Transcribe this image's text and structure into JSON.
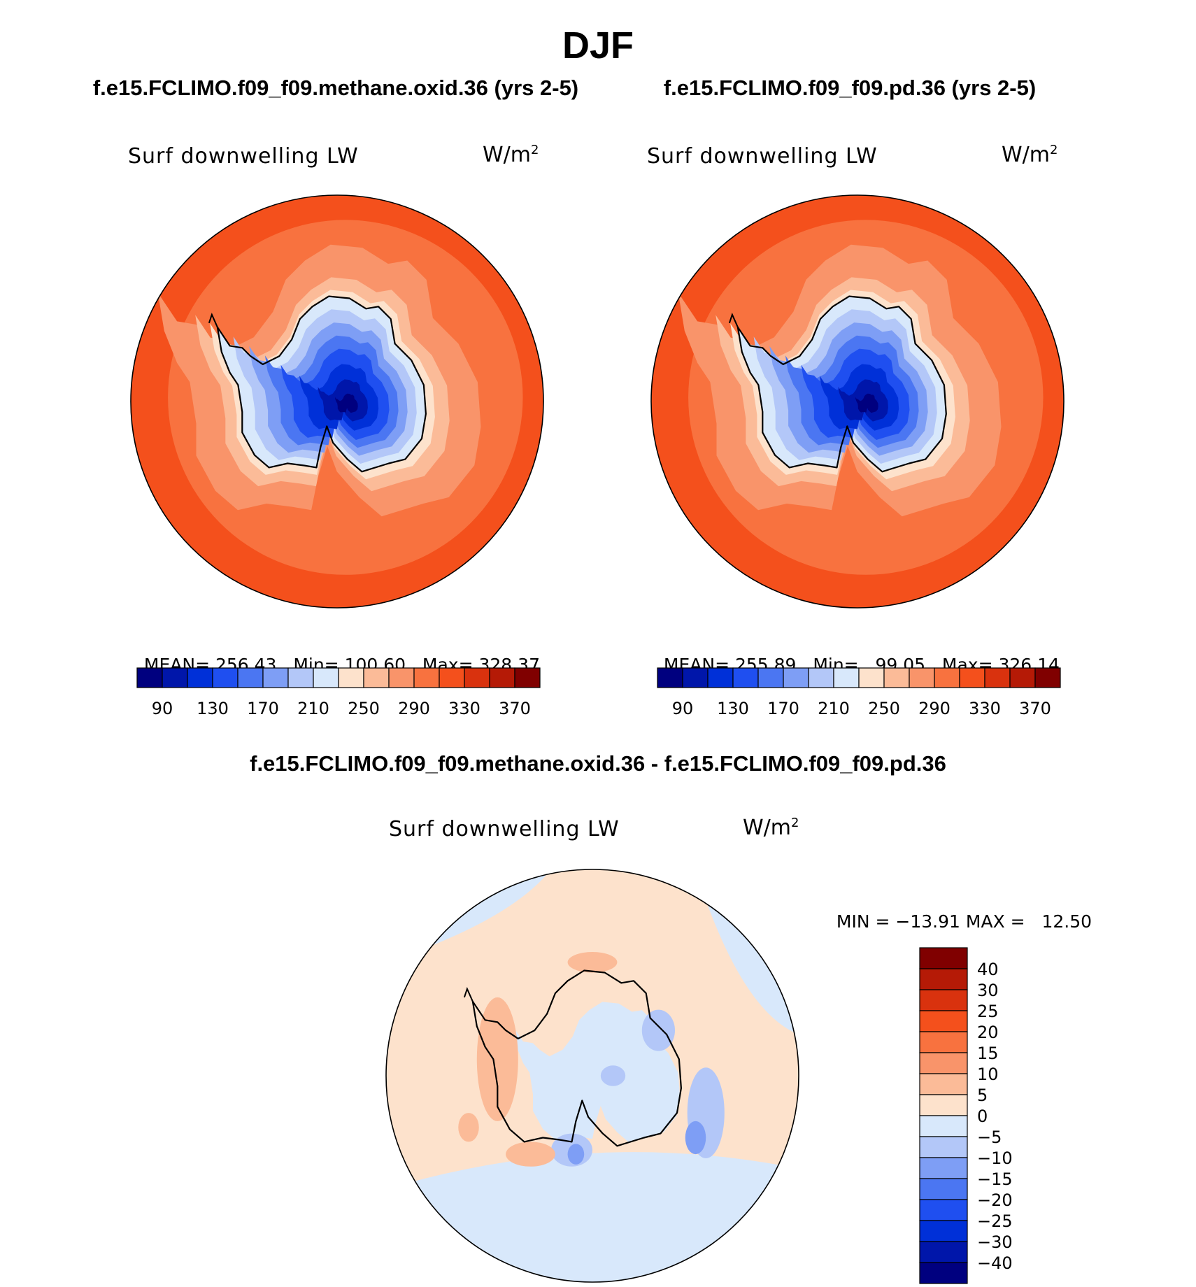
{
  "season": "DJF",
  "panels": [
    {
      "title": "f.e15.FCLIMO.f09_f09.methane.oxid.36 (yrs 2-5)",
      "variable": "Surf downwelling LW",
      "units": "W/m",
      "units_sup": "2",
      "stats": {
        "mean_label": "MEAN=",
        "mean": "256.43",
        "min_label": "Min=",
        "min": "100.60",
        "max_label": "Max=",
        "max": "328.37"
      }
    },
    {
      "title": "f.e15.FCLIMO.f09_f09.pd.36 (yrs 2-5)",
      "variable": "Surf downwelling LW",
      "units": "W/m",
      "units_sup": "2",
      "stats": {
        "mean_label": "MEAN=",
        "mean": "255.89",
        "min_label": "Min=",
        "min": "99.05",
        "max_label": "Max=",
        "max": "326.14"
      }
    }
  ],
  "abs_colorbar": {
    "ticks": [
      "90",
      "130",
      "170",
      "210",
      "250",
      "290",
      "330",
      "370"
    ],
    "colors": [
      "#00007f",
      "#0016aa",
      "#0030d8",
      "#1f4ff0",
      "#4b76f2",
      "#7e9ef5",
      "#b3c7f8",
      "#d8e8fb",
      "#fde2cc",
      "#fbbb98",
      "#f9946a",
      "#f8723f",
      "#f4501c",
      "#d9320e",
      "#b51a06",
      "#800000"
    ]
  },
  "diff_panel": {
    "title": "f.e15.FCLIMO.f09_f09.methane.oxid.36 - f.e15.FCLIMO.f09_f09.pd.36",
    "variable": "Surf downwelling LW",
    "units": "W/m",
    "units_sup": "2",
    "minmax": {
      "min_label": "MIN =",
      "min": "−13.91",
      "max_label": "MAX =",
      "max": "12.50"
    }
  },
  "diff_colorbar": {
    "ticks": [
      "40",
      "30",
      "25",
      "20",
      "15",
      "10",
      "5",
      "0",
      "−5",
      "−10",
      "−15",
      "−20",
      "−25",
      "−30",
      "−40"
    ],
    "colors": [
      "#800000",
      "#b51a06",
      "#d9320e",
      "#f4501c",
      "#f8723f",
      "#f9946a",
      "#fbbb98",
      "#fde2cc",
      "#d8e8fb",
      "#b3c7f8",
      "#7e9ef5",
      "#4b76f2",
      "#1f4ff0",
      "#0030d8",
      "#0016aa",
      "#00007f"
    ]
  },
  "colors": {
    "ocean_outer": "#f4501c",
    "ocean_mid": "#f8723f",
    "ocean_inner": "#f9946a",
    "coast_warm": "#fbbb98",
    "coast_light": "#fde2cc",
    "diff_ocean": "#fde2cc",
    "diff_ice": "#d8e8fb",
    "coastline": "#000000"
  }
}
